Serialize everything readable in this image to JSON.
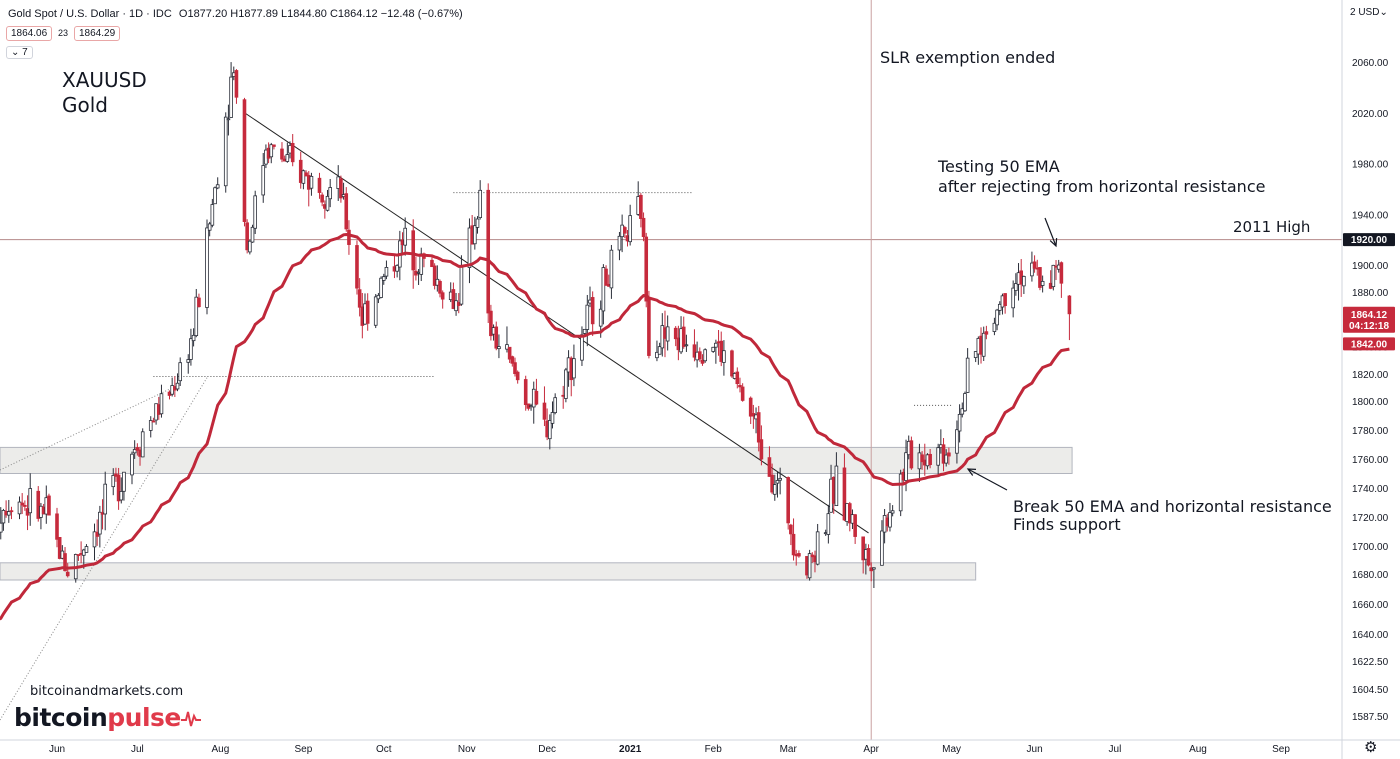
{
  "header": {
    "symbol_line": "Gold Spot / U.S. Dollar · 1D · IDC",
    "ohlc": "O1877.20 H1877.89 L1844.80 C1864.12 −12.48 (−0.67%)",
    "bid": "1864.06",
    "spread": "23",
    "ask": "1864.29",
    "collapse": "⌄ 7",
    "currency": "2 USD⌄"
  },
  "annotations": {
    "title": "XAUUSD",
    "subtitle": "Gold",
    "slr": "SLR exemption ended",
    "testing1": "Testing 50 EMA",
    "testing2": "after rejecting from horizontal resistance",
    "high_2011": "2011 High",
    "break1": "Break 50 EMA and horizontal resistance",
    "break2": "Finds support"
  },
  "watermark": {
    "site": "bitcoinandmarkets.com",
    "brand_a": "bitcoin",
    "brand_b": "pulse"
  },
  "colors": {
    "up": "#2a2e39",
    "down": "#c62a3c",
    "ema": "#c0283a",
    "zone_fill": "#ececea",
    "zone_stroke": "#b2b5be",
    "price_tag": "#c62a3c",
    "level_tag": "#131722"
  },
  "chart_data": {
    "type": "candlestick",
    "ylim": [
      1578,
      2085
    ],
    "y_ticks": [
      2060,
      2020,
      1980,
      1940,
      1900,
      1880,
      1860,
      1840,
      1820,
      1800,
      1780,
      1760,
      1740,
      1720,
      1700,
      1680,
      1660,
      1640,
      1622.5,
      1604.5,
      1587.5
    ],
    "y_tick_labels": [
      "2060.00",
      "2020.00",
      "1980.00",
      "1940.00",
      "1900.00",
      "1880.00",
      "1860.00",
      "1840.00",
      "1820.00",
      "1800.00",
      "1780.00",
      "1760.00",
      "1740.00",
      "1720.00",
      "1700.00",
      "1680.00",
      "1660.00",
      "1640.00",
      "1622.50",
      "1604.50",
      "1587.50"
    ],
    "x_labels": [
      {
        "date": "2020-06-01",
        "label": "Jun"
      },
      {
        "date": "2020-07-01",
        "label": "Jul"
      },
      {
        "date": "2020-08-01",
        "label": "Aug"
      },
      {
        "date": "2020-09-01",
        "label": "Sep"
      },
      {
        "date": "2020-10-01",
        "label": "Oct"
      },
      {
        "date": "2020-11-01",
        "label": "Nov"
      },
      {
        "date": "2020-12-01",
        "label": "Dec"
      },
      {
        "date": "2021-01-01",
        "label": "2021"
      },
      {
        "date": "2021-02-01",
        "label": "Feb"
      },
      {
        "date": "2021-03-01",
        "label": "Mar"
      },
      {
        "date": "2021-04-01",
        "label": "Apr"
      },
      {
        "date": "2021-05-01",
        "label": "May"
      },
      {
        "date": "2021-06-01",
        "label": "Jun"
      },
      {
        "date": "2021-07-01",
        "label": "Jul"
      },
      {
        "date": "2021-08-01",
        "label": "Aug"
      },
      {
        "date": "2021-09-01",
        "label": "Sep"
      }
    ],
    "price_path": [
      [
        "2020-05-01",
        1700
      ],
      [
        "2020-05-15",
        1735
      ],
      [
        "2020-05-28",
        1720
      ],
      [
        "2020-06-05",
        1683
      ],
      [
        "2020-06-18",
        1722
      ],
      [
        "2020-06-30",
        1770
      ],
      [
        "2020-07-14",
        1810
      ],
      [
        "2020-07-22",
        1850
      ],
      [
        "2020-07-31",
        1975
      ],
      [
        "2020-08-06",
        2060
      ],
      [
        "2020-08-11",
        1912
      ],
      [
        "2020-08-18",
        1995
      ],
      [
        "2020-08-31",
        1972
      ],
      [
        "2020-09-15",
        1955
      ],
      [
        "2020-09-23",
        1862
      ],
      [
        "2020-10-09",
        1918
      ],
      [
        "2020-10-28",
        1872
      ],
      [
        "2020-11-06",
        1952
      ],
      [
        "2020-11-09",
        1855
      ],
      [
        "2020-11-30",
        1780
      ],
      [
        "2020-12-16",
        1860
      ],
      [
        "2021-01-05",
        1945
      ],
      [
        "2021-01-08",
        1848
      ],
      [
        "2021-02-02",
        1842
      ],
      [
        "2021-02-18",
        1778
      ],
      [
        "2021-03-08",
        1683
      ],
      [
        "2021-03-19",
        1742
      ],
      [
        "2021-03-31",
        1688
      ],
      [
        "2021-04-15",
        1762
      ],
      [
        "2021-04-30",
        1768
      ],
      [
        "2021-05-10",
        1835
      ],
      [
        "2021-05-25",
        1895
      ],
      [
        "2021-06-04",
        1890
      ],
      [
        "2021-06-10",
        1895
      ],
      [
        "2021-06-14",
        1864
      ]
    ],
    "last_close": 1864.12,
    "ema_period": 50,
    "ema_value": 1842.0,
    "countdown": "04:12:18",
    "levels": [
      {
        "name": "2011 High",
        "value": 1920.0
      }
    ],
    "zones": [
      {
        "from": "2020-04-25",
        "to": "2021-06-15",
        "low": 1750,
        "high": 1768
      },
      {
        "from": "2020-04-25",
        "to": "2021-05-10",
        "low": 1676,
        "high": 1688
      }
    ],
    "dotted_lines": [
      {
        "from": "2020-10-27",
        "to": "2021-01-24",
        "value": 1957
      },
      {
        "from": "2020-07-07",
        "to": "2020-10-20",
        "value": 1818
      },
      {
        "from": "2021-04-17",
        "to": "2021-05-01",
        "value": 1797
      }
    ],
    "trendline": {
      "from": [
        "2020-08-10",
        2020
      ],
      "to": [
        "2021-03-31",
        1709
      ]
    },
    "event": {
      "date": "2021-04-01",
      "label": "SLR exemption ended"
    }
  }
}
